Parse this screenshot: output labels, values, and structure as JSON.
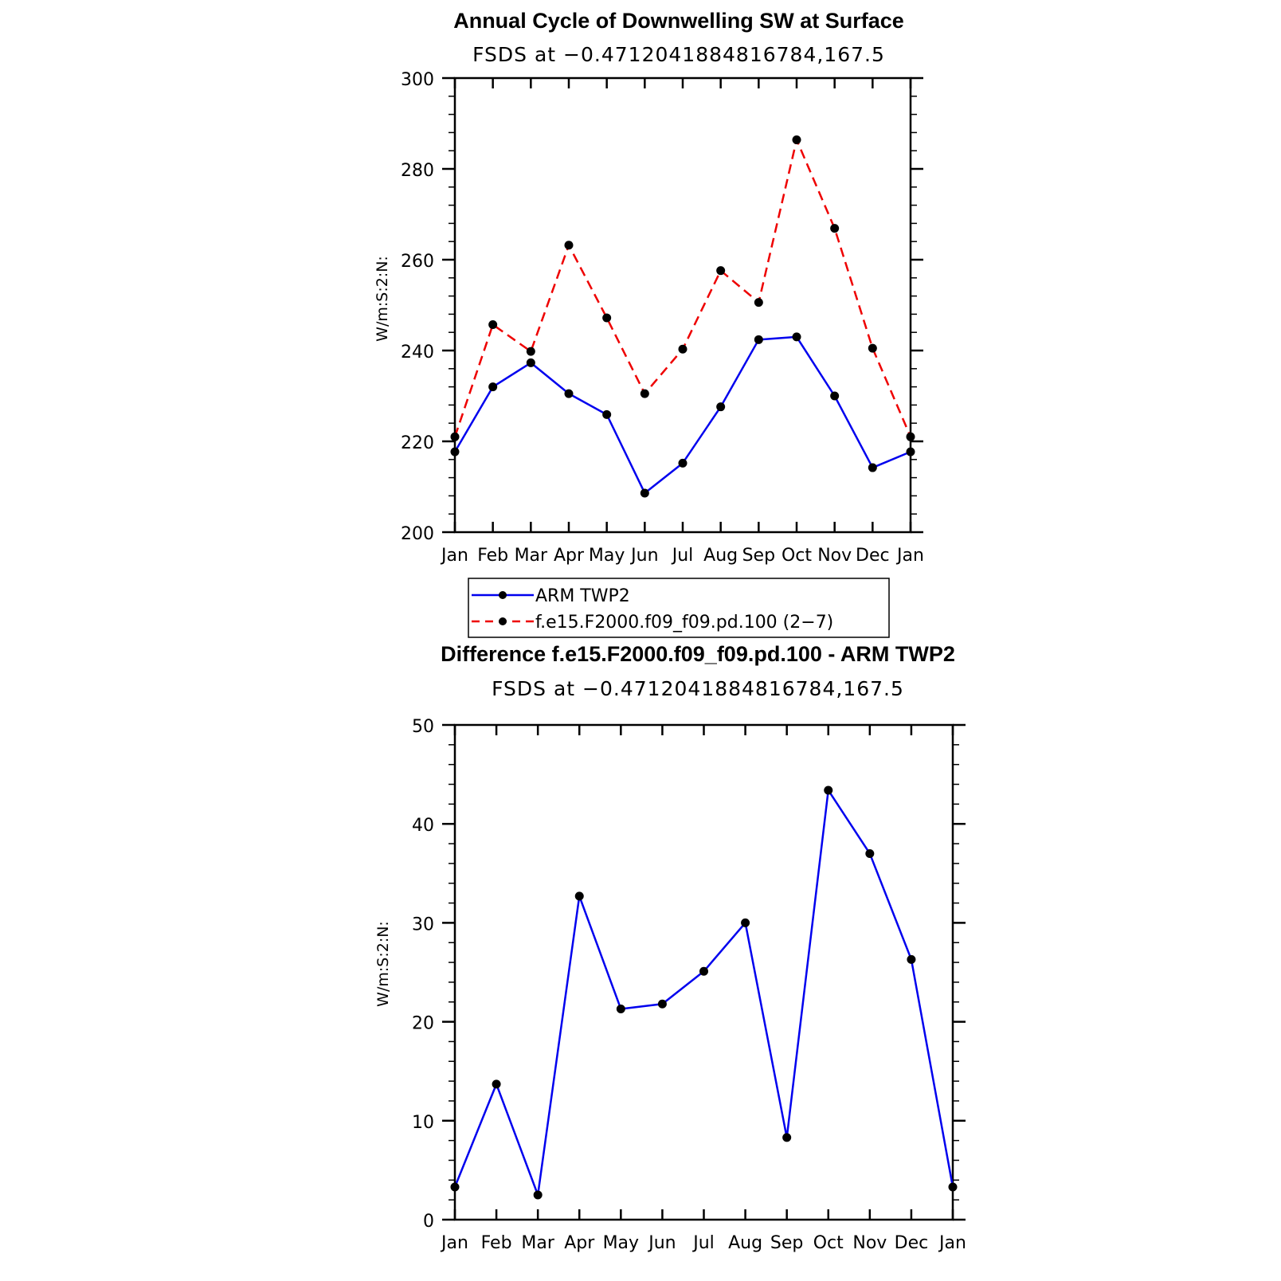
{
  "chart_data": [
    {
      "type": "line",
      "title": "Annual Cycle of Downwelling SW at Surface",
      "subtitle": "FSDS at −0.4712041884816784,167.5",
      "xlabel": "",
      "ylabel": "W/m:S:2:N:",
      "categories": [
        "Jan",
        "Feb",
        "Mar",
        "Apr",
        "May",
        "Jun",
        "Jul",
        "Aug",
        "Sep",
        "Oct",
        "Nov",
        "Dec",
        "Jan"
      ],
      "ylim": [
        200,
        300
      ],
      "yticks": [
        200,
        220,
        240,
        260,
        280,
        300
      ],
      "ytick_labels": [
        "200",
        "220",
        "240",
        "260",
        "280",
        "300"
      ],
      "grid": false,
      "legend": "below",
      "series": [
        {
          "name": "ARM TWP2",
          "color": "#0000ee",
          "dash": "solid",
          "values": [
            217.7,
            232.0,
            237.3,
            230.5,
            225.9,
            208.6,
            215.2,
            227.6,
            242.4,
            243.0,
            230.0,
            214.2,
            217.7
          ]
        },
        {
          "name": "f.e15.F2000.f09_f09.pd.100 (2−7)",
          "color": "#ee0000",
          "dash": "dashed",
          "values": [
            221.0,
            245.7,
            239.8,
            263.2,
            247.2,
            230.5,
            240.3,
            257.6,
            250.6,
            286.4,
            266.9,
            240.5,
            221.0
          ]
        }
      ]
    },
    {
      "type": "line",
      "title": "Difference f.e15.F2000.f09_f09.pd.100 - ARM TWP2",
      "subtitle": "FSDS at −0.4712041884816784,167.5",
      "xlabel": "",
      "ylabel": "W/m:S:2:N:",
      "categories": [
        "Jan",
        "Feb",
        "Mar",
        "Apr",
        "May",
        "Jun",
        "Jul",
        "Aug",
        "Sep",
        "Oct",
        "Nov",
        "Dec",
        "Jan"
      ],
      "ylim": [
        0,
        50
      ],
      "yticks": [
        0,
        10,
        20,
        30,
        40,
        50
      ],
      "ytick_labels": [
        "0",
        "10",
        "20",
        "30",
        "40",
        "50"
      ],
      "grid": false,
      "series": [
        {
          "color": "#0000ee",
          "dash": "solid",
          "values": [
            3.3,
            13.7,
            2.5,
            32.7,
            21.3,
            21.8,
            25.1,
            30.0,
            8.3,
            43.4,
            37.0,
            26.3,
            3.3
          ]
        }
      ]
    }
  ]
}
